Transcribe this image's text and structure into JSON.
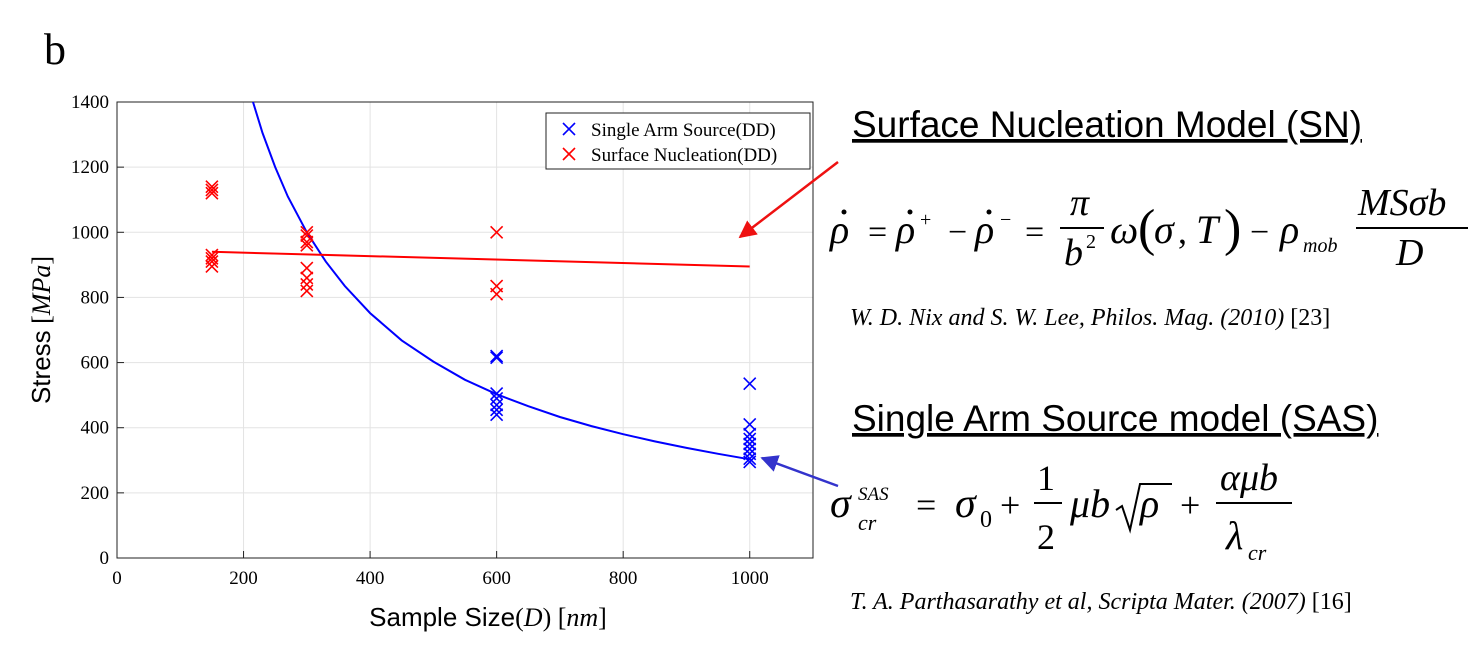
{
  "panel_label": "b",
  "chart_data": {
    "type": "scatter",
    "xlabel_main": "Sample Size",
    "xlabel_symbol": "D",
    "xlabel_unit": "nm",
    "ylabel_main": "Stress",
    "ylabel_unit": "MPa",
    "xlim": [
      0,
      1100
    ],
    "ylim": [
      0,
      1400
    ],
    "x_ticks": [
      0,
      200,
      400,
      600,
      800,
      1000
    ],
    "y_ticks": [
      0,
      200,
      400,
      600,
      800,
      1000,
      1200,
      1400
    ],
    "grid": true,
    "legend_position": "top-right",
    "series": [
      {
        "name": "Single Arm Source(DD)",
        "color": "#0000ff",
        "marker": "x",
        "points": [
          [
            600,
            620
          ],
          [
            600,
            615
          ],
          [
            600,
            505
          ],
          [
            600,
            490
          ],
          [
            600,
            470
          ],
          [
            600,
            455
          ],
          [
            600,
            440
          ],
          [
            1000,
            535
          ],
          [
            1000,
            410
          ],
          [
            1000,
            380
          ],
          [
            1000,
            365
          ],
          [
            1000,
            350
          ],
          [
            1000,
            335
          ],
          [
            1000,
            320
          ],
          [
            1000,
            305
          ],
          [
            1000,
            295
          ]
        ]
      },
      {
        "name": "Surface Nucleation(DD)",
        "color": "#ff0000",
        "marker": "x",
        "points": [
          [
            150,
            1140
          ],
          [
            150,
            1130
          ],
          [
            150,
            1120
          ],
          [
            150,
            930
          ],
          [
            150,
            920
          ],
          [
            150,
            910
          ],
          [
            150,
            895
          ],
          [
            300,
            1000
          ],
          [
            300,
            990
          ],
          [
            300,
            970
          ],
          [
            300,
            960
          ],
          [
            300,
            890
          ],
          [
            300,
            860
          ],
          [
            300,
            840
          ],
          [
            300,
            820
          ],
          [
            600,
            1000
          ],
          [
            600,
            835
          ],
          [
            600,
            810
          ]
        ]
      }
    ],
    "fit_lines": [
      {
        "name": "SAS fit",
        "color": "#0000ff",
        "x": [
          215,
          230,
          250,
          270,
          300,
          330,
          360,
          400,
          450,
          500,
          550,
          600,
          650,
          700,
          750,
          800,
          850,
          900,
          950,
          1000
        ],
        "y": [
          1400,
          1305,
          1200,
          1110,
          1000,
          910,
          835,
          752,
          668,
          603,
          547,
          503,
          466,
          433,
          405,
          380,
          358,
          338,
          320,
          303
        ]
      },
      {
        "name": "SN fit",
        "color": "#ff0000",
        "x": [
          150,
          1000
        ],
        "y": [
          940,
          895
        ]
      }
    ]
  },
  "sn_model": {
    "heading": "Surface Nucleation Model (SN)",
    "reference_italic": "W. D. Nix and S. W. Lee, Philos. Mag. (2010)",
    "reference_num": "[23]"
  },
  "sas_model": {
    "heading": "Single Arm Source model (SAS)",
    "reference_italic": "T. A. Parthasarathy et al, Scripta Mater. (2007)",
    "reference_num": "[16]"
  },
  "arrow_colors": {
    "sn": "#ee1111",
    "sas": "#3333cc"
  }
}
